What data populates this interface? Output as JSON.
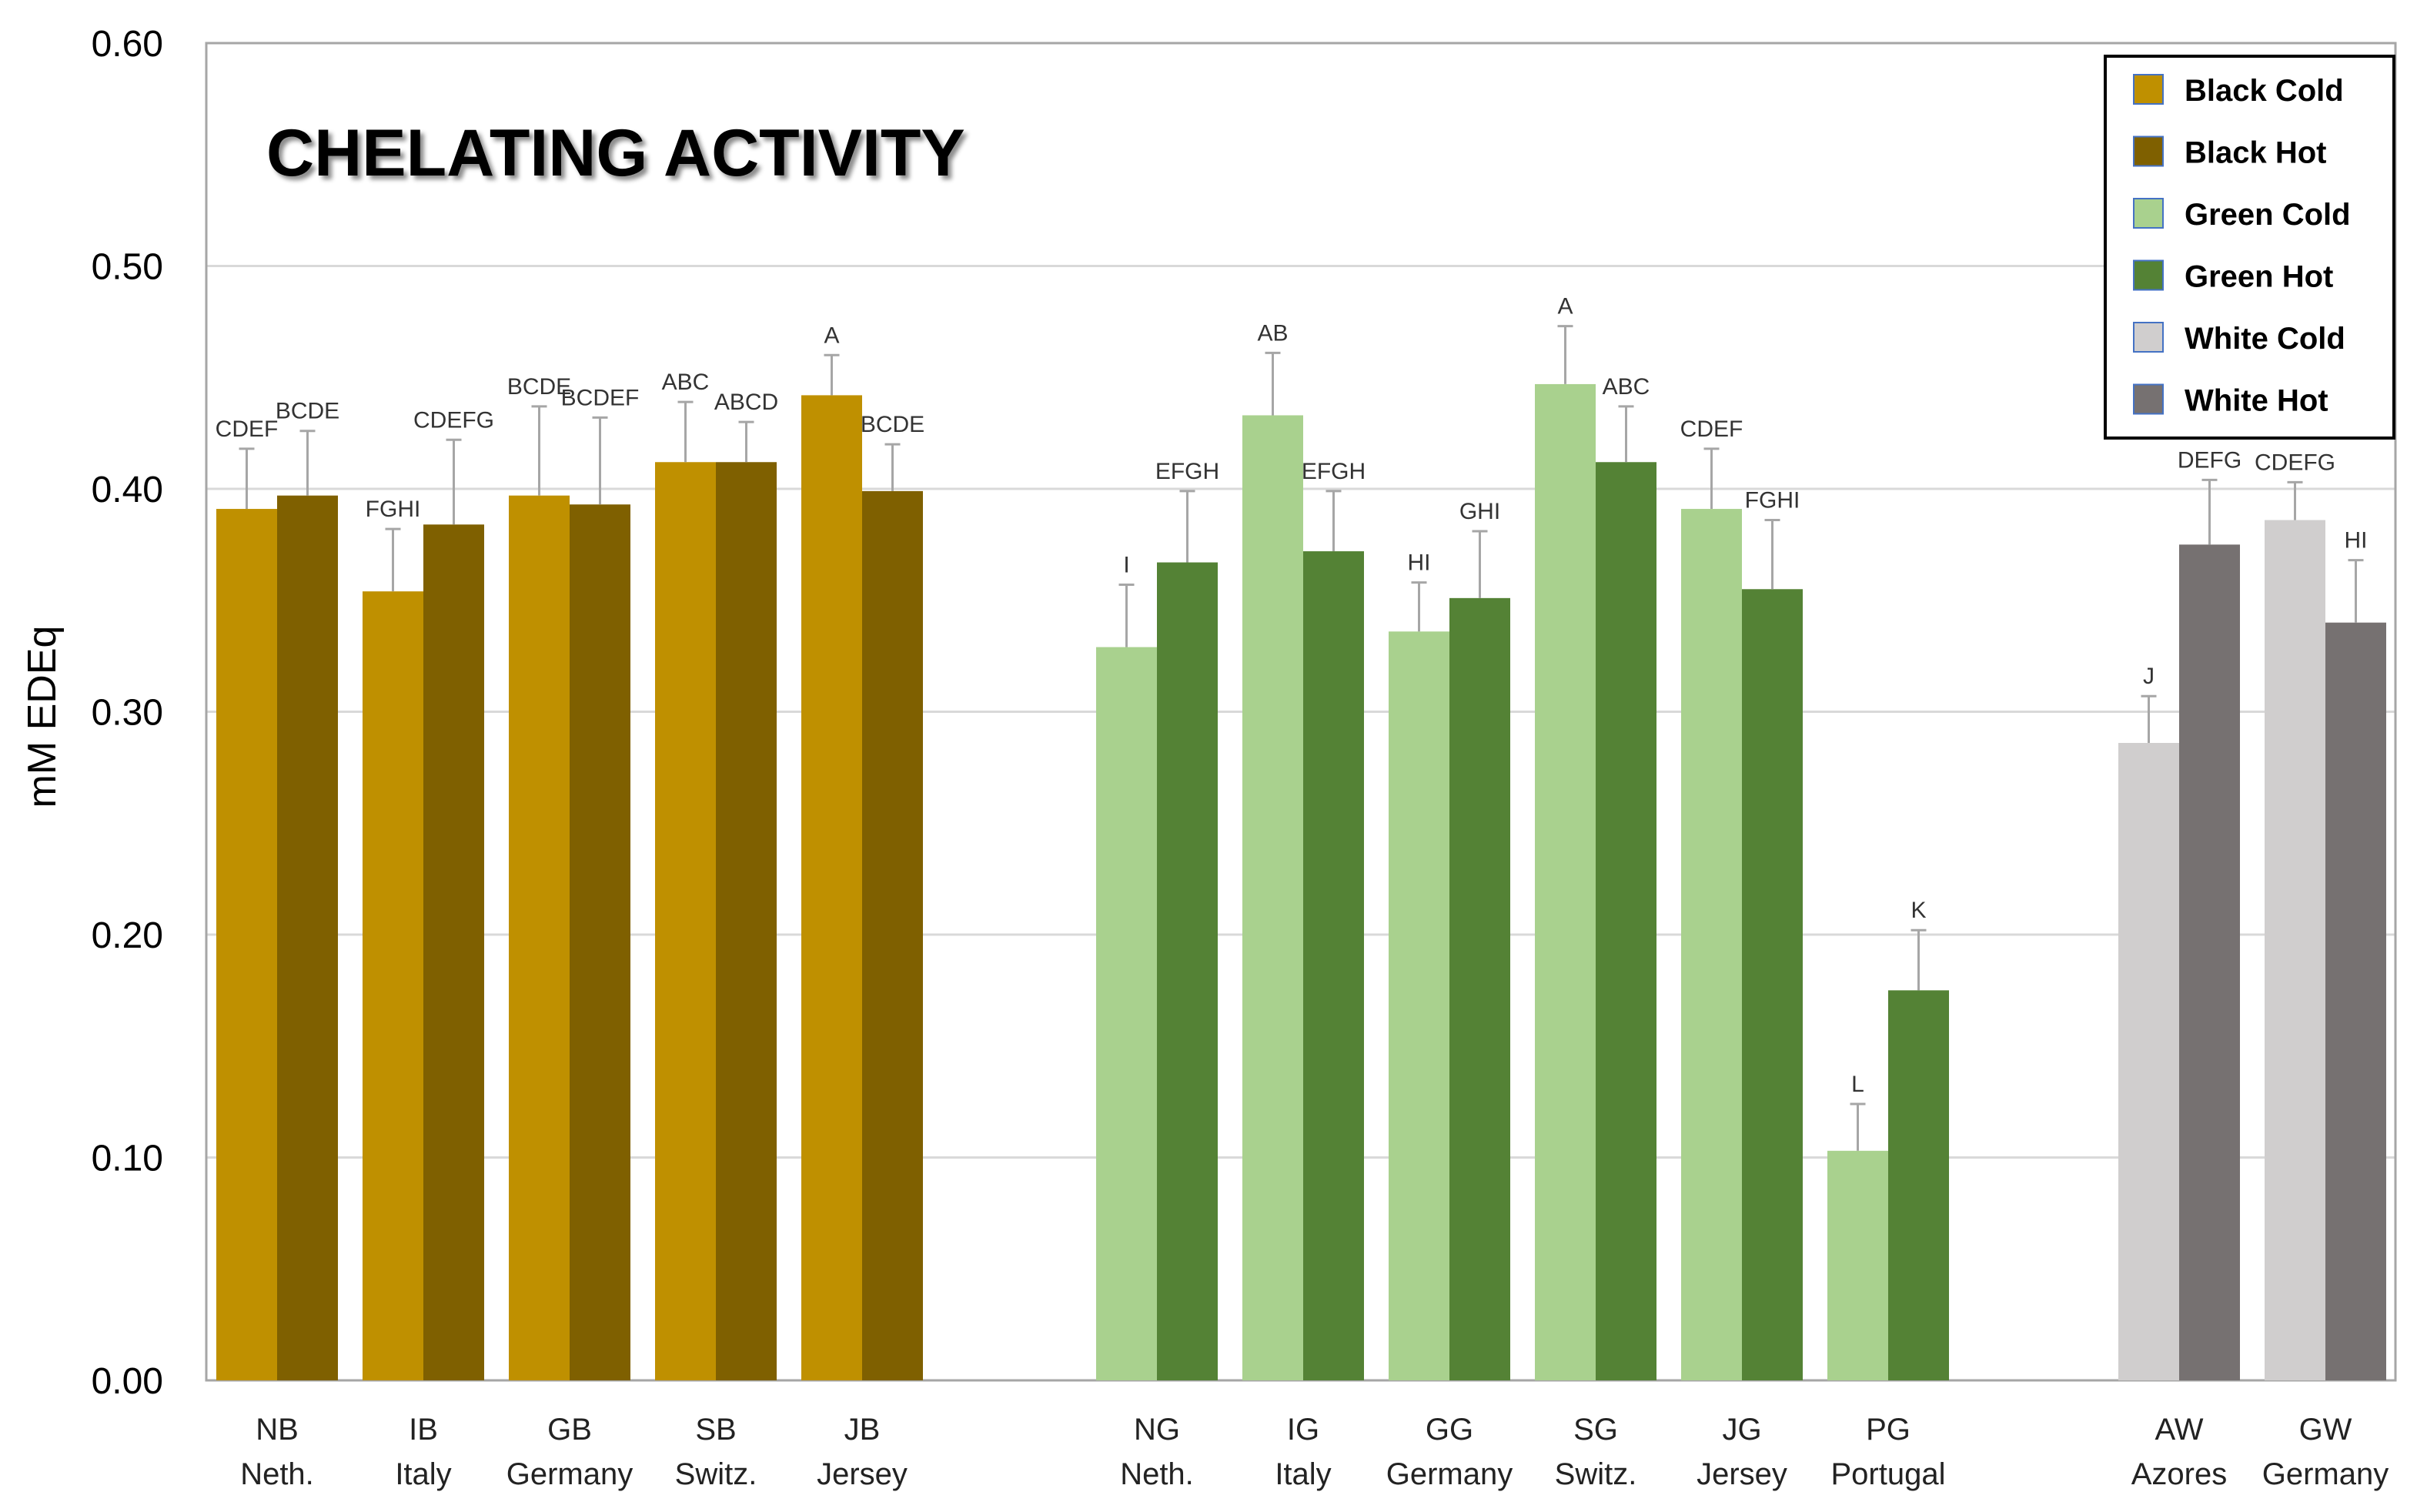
{
  "chart_data": {
    "type": "bar",
    "title": "CHELATING ACTIVITY",
    "xlabel": "",
    "ylabel": "mM EDEq",
    "ylim": [
      0,
      0.6
    ],
    "yticks": [
      "0.00",
      "0.10",
      "0.20",
      "0.30",
      "0.40",
      "0.50",
      "0.60"
    ],
    "grid": true,
    "legend_position": "top-right",
    "series_styles": [
      {
        "name": "Black Cold",
        "color": "#BF9000"
      },
      {
        "name": "Black Hot",
        "color": "#7F6000"
      },
      {
        "name": "Green Cold",
        "color": "#A9D18E"
      },
      {
        "name": "Green Hot",
        "color": "#548235"
      },
      {
        "name": "White Cold",
        "color": "#D0CECE"
      },
      {
        "name": "White Hot",
        "color": "#767171"
      }
    ],
    "groups": [
      {
        "code": "NB",
        "origin": "Neth.",
        "bars": [
          {
            "series": "Black Cold",
            "value": 0.391,
            "error": 0.027,
            "label": "CDEF"
          },
          {
            "series": "Black Hot",
            "value": 0.397,
            "error": 0.029,
            "label": "BCDE"
          }
        ]
      },
      {
        "code": "IB",
        "origin": "Italy",
        "bars": [
          {
            "series": "Black Cold",
            "value": 0.354,
            "error": 0.028,
            "label": "FGHI"
          },
          {
            "series": "Black Hot",
            "value": 0.384,
            "error": 0.038,
            "label": "CDEFG"
          }
        ]
      },
      {
        "code": "GB",
        "origin": "Germany",
        "bars": [
          {
            "series": "Black Cold",
            "value": 0.397,
            "error": 0.04,
            "label": "BCDE"
          },
          {
            "series": "Black Hot",
            "value": 0.393,
            "error": 0.039,
            "label": "BCDEF"
          }
        ]
      },
      {
        "code": "SB",
        "origin": "Switz.",
        "bars": [
          {
            "series": "Black Cold",
            "value": 0.412,
            "error": 0.027,
            "label": "ABC"
          },
          {
            "series": "Black Hot",
            "value": 0.412,
            "error": 0.018,
            "label": "ABCD"
          }
        ]
      },
      {
        "code": "JB",
        "origin": "Jersey",
        "bars": [
          {
            "series": "Black Cold",
            "value": 0.442,
            "error": 0.018,
            "label": "A"
          },
          {
            "series": "Black Hot",
            "value": 0.399,
            "error": 0.021,
            "label": "BCDE"
          }
        ]
      },
      {
        "code": "NG",
        "origin": "Neth.",
        "bars": [
          {
            "series": "Green Cold",
            "value": 0.329,
            "error": 0.028,
            "label": "I"
          },
          {
            "series": "Green Hot",
            "value": 0.367,
            "error": 0.032,
            "label": "EFGH"
          }
        ]
      },
      {
        "code": "IG",
        "origin": "Italy",
        "bars": [
          {
            "series": "Green Cold",
            "value": 0.433,
            "error": 0.028,
            "label": "AB"
          },
          {
            "series": "Green Hot",
            "value": 0.372,
            "error": 0.027,
            "label": "EFGH"
          }
        ]
      },
      {
        "code": "GG",
        "origin": "Germany",
        "bars": [
          {
            "series": "Green Cold",
            "value": 0.336,
            "error": 0.022,
            "label": "HI"
          },
          {
            "series": "Green Hot",
            "value": 0.351,
            "error": 0.03,
            "label": "GHI"
          }
        ]
      },
      {
        "code": "SG",
        "origin": "Switz.",
        "bars": [
          {
            "series": "Green Cold",
            "value": 0.447,
            "error": 0.026,
            "label": "A"
          },
          {
            "series": "Green Hot",
            "value": 0.412,
            "error": 0.025,
            "label": "ABC"
          }
        ]
      },
      {
        "code": "JG",
        "origin": "Jersey",
        "bars": [
          {
            "series": "Green Cold",
            "value": 0.391,
            "error": 0.027,
            "label": "CDEF"
          },
          {
            "series": "Green Hot",
            "value": 0.355,
            "error": 0.031,
            "label": "FGHI"
          }
        ]
      },
      {
        "code": "PG",
        "origin": "Portugal",
        "bars": [
          {
            "series": "Green Cold",
            "value": 0.103,
            "error": 0.021,
            "label": "L"
          },
          {
            "series": "Green Hot",
            "value": 0.175,
            "error": 0.027,
            "label": "K"
          }
        ]
      },
      {
        "code": "AW",
        "origin": "Azores",
        "bars": [
          {
            "series": "White Cold",
            "value": 0.286,
            "error": 0.021,
            "label": "J"
          },
          {
            "series": "White Hot",
            "value": 0.375,
            "error": 0.029,
            "label": "DEFG"
          }
        ]
      },
      {
        "code": "GW",
        "origin": "Germany",
        "bars": [
          {
            "series": "White Cold",
            "value": 0.386,
            "error": 0.017,
            "label": "CDEFG"
          },
          {
            "series": "White Hot",
            "value": 0.34,
            "error": 0.028,
            "label": "HI"
          }
        ]
      }
    ]
  }
}
